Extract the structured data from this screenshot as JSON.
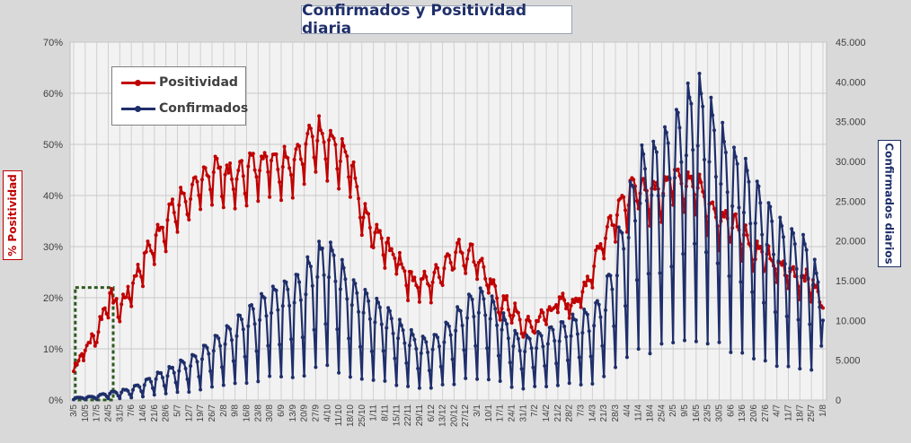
{
  "chart_data": {
    "type": "line",
    "title": "Confirmados  y Positividad  diaria",
    "ylabel_left": "% Positividad",
    "ylabel_right": "Confirmados diarios",
    "y_left_ticks": [
      "0%",
      "10%",
      "20%",
      "30%",
      "40%",
      "50%",
      "60%",
      "70%"
    ],
    "y_right_ticks": [
      "0",
      "5.000",
      "10.000",
      "15.000",
      "20.000",
      "25.000",
      "30.000",
      "35.000",
      "40.000",
      "45.000"
    ],
    "ylim_left": [
      0,
      70
    ],
    "ylim_right": [
      0,
      45000
    ],
    "x_ticks": [
      "3/5",
      "10/5",
      "17/5",
      "24/5",
      "31/5",
      "7/6",
      "14/6",
      "21/6",
      "28/6",
      "5/7",
      "12/7",
      "19/7",
      "26/7",
      "2/8",
      "9/8",
      "16/8",
      "23/8",
      "30/8",
      "6/9",
      "13/9",
      "20/9",
      "27/9",
      "4/10",
      "11/10",
      "18/10",
      "25/10",
      "1/11",
      "8/11",
      "15/11",
      "22/11",
      "29/11",
      "6/12",
      "13/12",
      "20/12",
      "27/12",
      "3/1",
      "10/1",
      "17/1",
      "24/1",
      "31/1",
      "7/2",
      "14/2",
      "21/2",
      "28/2",
      "7/3",
      "14/3",
      "21/3",
      "28/3",
      "4/4",
      "11/4",
      "18/4",
      "25/4",
      "2/5",
      "9/5",
      "16/5",
      "23/5",
      "30/5",
      "6/6",
      "13/6",
      "20/6",
      "27/6",
      "4/7",
      "11/7",
      "18/7",
      "25/7",
      "1/8"
    ],
    "grid": true,
    "legend_position": "top-left",
    "colors": {
      "positividad": "#c00000",
      "confirmados": "#1f2f6b"
    },
    "series": [
      {
        "name": "Positividad",
        "axis": "left",
        "color": "#c00000",
        "weekly_values": [
          6.5,
          10,
          13,
          20,
          18,
          22,
          27,
          31,
          35,
          38,
          40,
          42,
          45,
          44,
          43,
          45,
          46,
          47,
          46,
          47,
          49,
          52,
          51,
          48,
          46,
          36,
          33,
          30,
          28,
          24,
          23,
          23,
          26,
          29,
          29,
          28,
          23,
          19,
          18,
          14,
          15,
          17,
          19,
          19,
          20,
          26,
          32,
          37,
          39,
          42,
          40,
          41,
          44,
          43,
          42,
          38,
          35,
          35,
          33,
          29,
          28,
          26,
          25,
          24,
          23,
          18
        ]
      },
      {
        "name": "Confirmados",
        "axis": "right",
        "color": "#1f2f6b",
        "weekly_values": [
          200,
          300,
          400,
          800,
          900,
          1200,
          1800,
          2500,
          3000,
          3600,
          4200,
          5000,
          6000,
          7000,
          8000,
          9000,
          10000,
          11000,
          11500,
          12000,
          13000,
          15000,
          16000,
          14000,
          12000,
          11000,
          10000,
          9500,
          8000,
          7000,
          6000,
          6200,
          7000,
          8500,
          10000,
          11000,
          10500,
          9000,
          7000,
          6000,
          6500,
          7000,
          7500,
          8000,
          8500,
          9000,
          11000,
          15000,
          20000,
          24000,
          25000,
          26000,
          28000,
          30000,
          32000,
          30000,
          27000,
          25000,
          24000,
          22000,
          20000,
          18000,
          17000,
          16000,
          15000,
          10000
        ]
      }
    ]
  }
}
